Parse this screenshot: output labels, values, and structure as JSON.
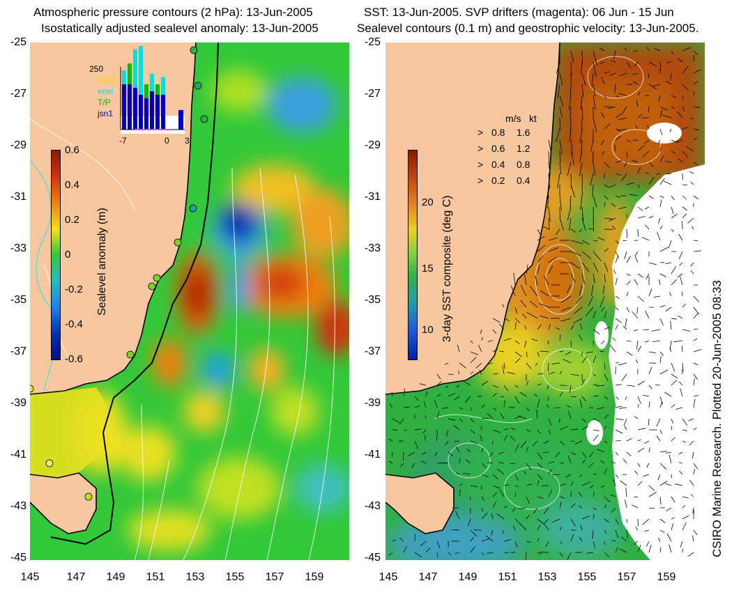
{
  "left": {
    "title1": "Atmospheric pressure contours (2 hPa): 13-Jun-2005",
    "title2": "Isostatically adjusted sealevel anomaly: 13-Jun-2005",
    "colorbar": {
      "label": "Sealevel anomaly (m)",
      "ticks": [
        "0.6",
        "0.4",
        "0.2",
        "0",
        "-0.2",
        "-0.4",
        "-0.6"
      ]
    },
    "histogram": {
      "ymax_label": "250",
      "series": [
        {
          "name": "GFO",
          "color": "#ffd000"
        },
        {
          "name": "envi",
          "color": "#00e0e0"
        },
        {
          "name": "T/P",
          "color": "#00c000"
        },
        {
          "name": "jsn1",
          "color": "#0000c0"
        }
      ],
      "x_ticks": [
        "-7",
        "0",
        "3"
      ]
    }
  },
  "right": {
    "title1": "SST: 13-Jun-2005. SVP drifters (magenta): 06 Jun - 15 Jun",
    "title2": "Sealevel contours (0.1 m) and geostrophic velocity: 13-Jun-2005.",
    "colorbar": {
      "label": "3-day SST composite (deg C)",
      "ticks": [
        "20",
        "15",
        "10"
      ]
    },
    "vector_legend": {
      "header_ms": "m/s",
      "header_kt": "kt",
      "rows": [
        {
          "ms": "0.8",
          "kt": "1.6"
        },
        {
          "ms": "0.6",
          "kt": "1.2"
        },
        {
          "ms": "0.4",
          "kt": "0.8"
        },
        {
          "ms": "0.2",
          "kt": "0.4"
        }
      ]
    }
  },
  "y_ticks": [
    "-25",
    "-27",
    "-29",
    "-31",
    "-33",
    "-35",
    "-37",
    "-39",
    "-41",
    "-43",
    "-45"
  ],
  "left_x_ticks": [
    "145",
    "147",
    "149",
    "151",
    "153",
    "155",
    "157",
    "159"
  ],
  "right_x_ticks": [
    "145",
    "147",
    "149",
    "151",
    "153",
    "155",
    "157",
    "159"
  ],
  "credit": "CSIRO Marine Research. Plotted 20-Jun-2005 08:33",
  "colors": {
    "land": "#f7c8a0",
    "ocean_anomaly_base": "#33c83a",
    "coast": "#000000",
    "contour": "#ffffff"
  }
}
